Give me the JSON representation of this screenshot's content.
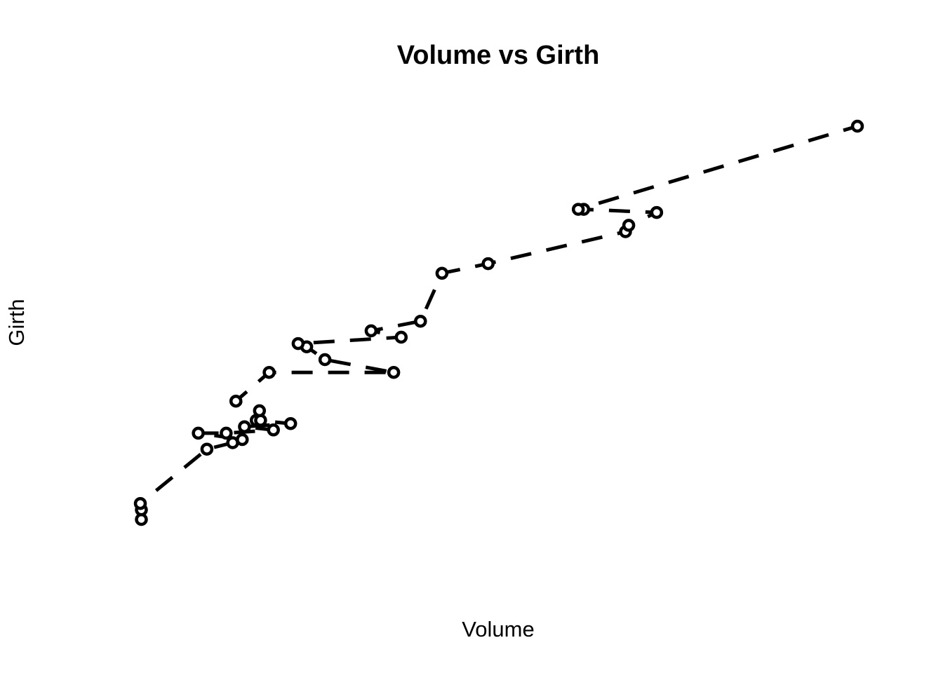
{
  "chart_data": {
    "type": "line",
    "title": "Volume vs Girth",
    "xlabel": "Volume",
    "ylabel": "Girth",
    "xlim": [
      10.2,
      77.0
    ],
    "ylim": [
      8.3,
      20.6
    ],
    "grid": false,
    "axes_visible": false,
    "line_style": "dashed",
    "marker": "open-circle",
    "colors": {
      "line": "#000000",
      "marker": "#000000",
      "background": "#ffffff"
    },
    "series": [
      {
        "x": [
          10.3,
          10.3,
          10.2,
          16.4,
          18.8,
          19.7,
          15.6,
          18.2,
          22.6,
          19.9,
          24.2,
          21.0,
          21.4,
          21.3,
          19.1,
          22.2,
          33.8,
          27.4,
          25.7,
          24.9,
          34.5,
          31.7,
          36.3,
          38.3,
          42.6,
          55.4,
          55.7,
          58.3,
          51.5,
          51.0,
          77.0
        ],
        "y": [
          8.3,
          8.6,
          8.8,
          10.5,
          10.7,
          10.8,
          11.0,
          11.0,
          11.1,
          11.2,
          11.3,
          11.4,
          11.4,
          11.7,
          12.0,
          12.9,
          12.9,
          13.3,
          13.7,
          13.8,
          14.0,
          14.2,
          14.5,
          16.0,
          16.3,
          17.3,
          17.5,
          17.9,
          18.0,
          18.0,
          20.6
        ]
      }
    ]
  }
}
